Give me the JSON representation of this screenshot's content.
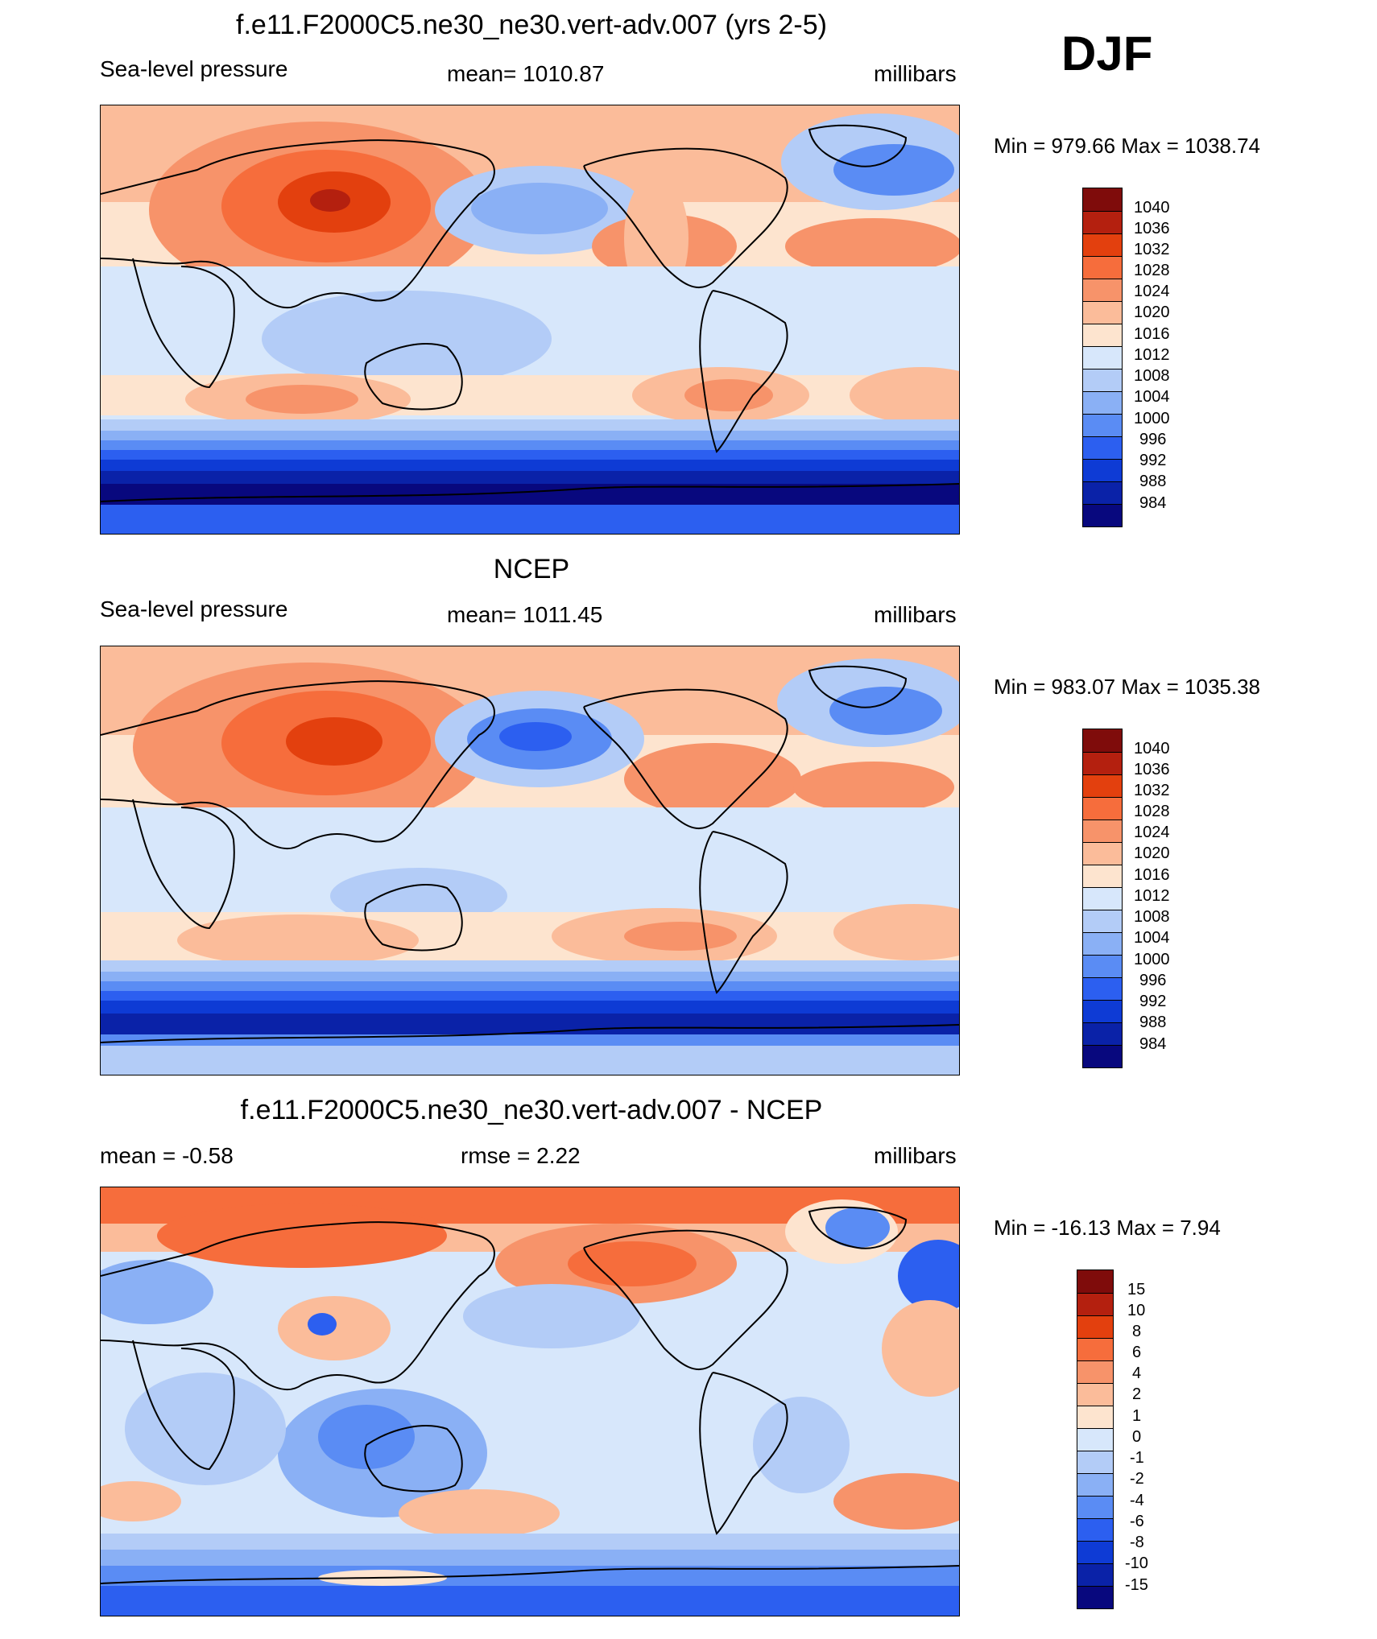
{
  "season": "DJF",
  "colors": {
    "abs_scale": [
      "#7f0c0b",
      "#b4200f",
      "#e3400e",
      "#f66d3c",
      "#f7936a",
      "#fbbc9a",
      "#fde4cf",
      "#d7e7fb",
      "#b3ccf7",
      "#8ab0f5",
      "#5a8cf4",
      "#2c5ff0",
      "#0e3bd5",
      "#0a22a8",
      "#08087e"
    ],
    "diff_scale": [
      "#7f0c0b",
      "#b4200f",
      "#e3400e",
      "#f66d3c",
      "#f7936a",
      "#fbbc9a",
      "#fde4cf",
      "#d7e7fb",
      "#b3ccf7",
      "#8ab0f5",
      "#5a8cf4",
      "#2c5ff0",
      "#0e3bd5",
      "#0a22a8",
      "#08087e"
    ]
  },
  "panels": [
    {
      "title": "f.e11.F2000C5.ne30_ne30.vert-adv.007 (yrs 2-5)",
      "left_label": "Sea-level pressure",
      "center_label": "mean= 1010.87",
      "right_label": "millibars",
      "minmax": "Min = 979.66 Max = 1038.74",
      "colorbar_labels": [
        "1040",
        "1036",
        "1032",
        "1028",
        "1024",
        "1020",
        "1016",
        "1012",
        "1008",
        "1004",
        "1000",
        "996",
        "992",
        "988",
        "984"
      ]
    },
    {
      "title": "NCEP",
      "left_label": "Sea-level pressure",
      "center_label": "mean= 1011.45",
      "right_label": "millibars",
      "minmax": "Min = 983.07 Max = 1035.38",
      "colorbar_labels": [
        "1040",
        "1036",
        "1032",
        "1028",
        "1024",
        "1020",
        "1016",
        "1012",
        "1008",
        "1004",
        "1000",
        "996",
        "992",
        "988",
        "984"
      ]
    },
    {
      "title": "f.e11.F2000C5.ne30_ne30.vert-adv.007 - NCEP",
      "left_label": "mean =  -0.58",
      "center_label": "rmse =    2.22",
      "right_label": "millibars",
      "minmax": "Min = -16.13 Max =    7.94",
      "colorbar_labels": [
        "15",
        "10",
        "8",
        "6",
        "4",
        "2",
        "1",
        "0",
        "-1",
        "-2",
        "-4",
        "-6",
        "-8",
        "-10",
        "-15"
      ]
    }
  ]
}
